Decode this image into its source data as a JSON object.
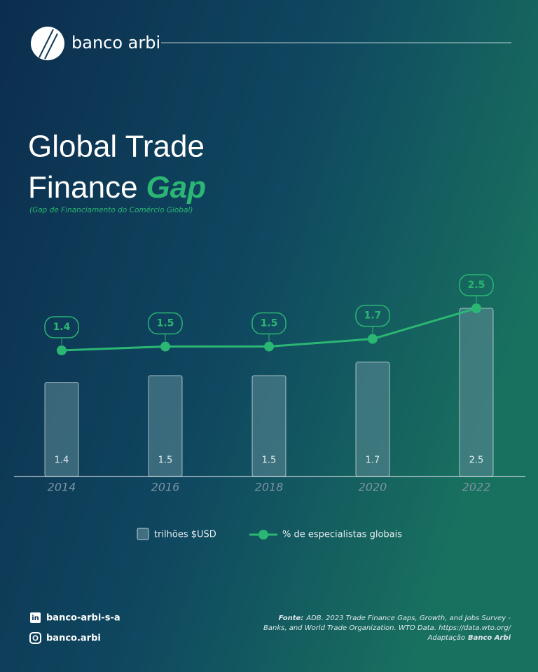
{
  "brand": "banco arbi",
  "chart_data": {
    "type": "bar",
    "title_lines": [
      "Global Trade",
      "Finance"
    ],
    "title_highlight": "Gap",
    "subtitle": "(Gap de Financiamento do Comércio Global)",
    "categories": [
      "2014",
      "2016",
      "2018",
      "2020",
      "2022"
    ],
    "series": [
      {
        "name": "trilhões $USD",
        "type": "bar",
        "color": "#5f8a97",
        "values": [
          1.4,
          1.5,
          1.5,
          1.7,
          2.5
        ]
      },
      {
        "name": "% de especialistas globais",
        "type": "line",
        "color": "#2bb673",
        "values": [
          1.4,
          1.5,
          1.5,
          1.7,
          2.5
        ]
      }
    ]
  },
  "footer": {
    "linkedin": "banco-arbi-s-a",
    "instagram": "banco.arbi",
    "source_label": "Fonte:",
    "source_text_1": "ADB. 2023 Trade Finance Gaps, Growth, and Jobs Survey -",
    "source_text_2": "Banks, and World Trade Organization. WTO Data. https://data.wto.org/",
    "adaptation_label": "Adaptação",
    "adaptation_by": "Banco Arbi"
  }
}
